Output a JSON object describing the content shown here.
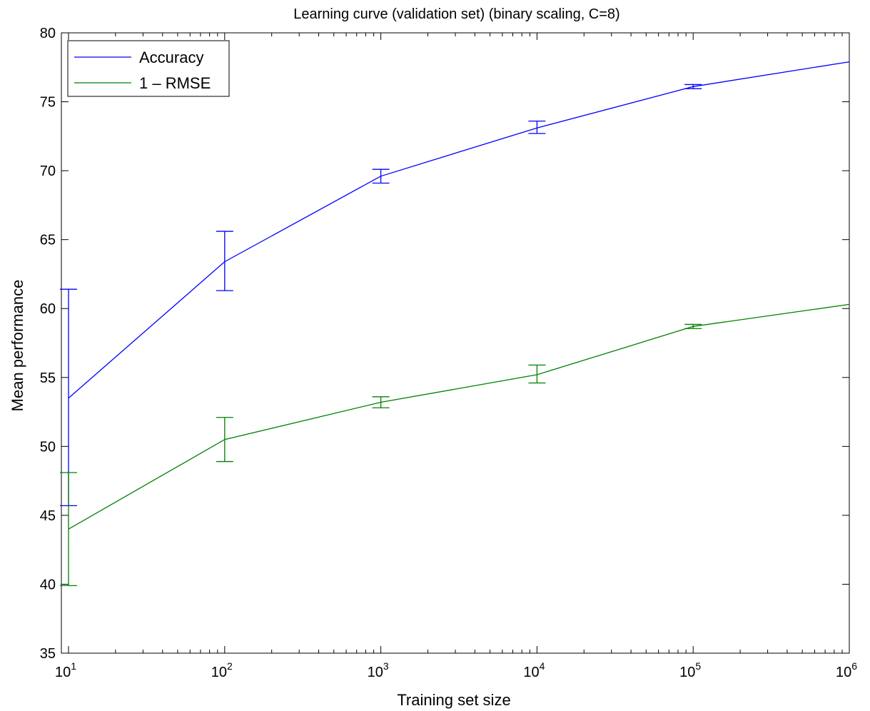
{
  "chart_data": {
    "type": "line",
    "title": "Learning curve (validation set) (binary scaling, C=8)",
    "xlabel": "Training set size",
    "ylabel": "Mean performance",
    "xscale": "log",
    "xlim": [
      9,
      1000000
    ],
    "ylim": [
      35,
      80
    ],
    "x_ticks": [
      {
        "value": 10,
        "base": "10",
        "exp": "1"
      },
      {
        "value": 100,
        "base": "10",
        "exp": "2"
      },
      {
        "value": 1000,
        "base": "10",
        "exp": "3"
      },
      {
        "value": 10000,
        "base": "10",
        "exp": "4"
      },
      {
        "value": 100000,
        "base": "10",
        "exp": "5"
      },
      {
        "value": 1000000,
        "base": "10",
        "exp": "6"
      }
    ],
    "y_ticks": [
      35,
      40,
      45,
      50,
      55,
      60,
      65,
      70,
      75,
      80
    ],
    "grid": false,
    "legend_position": "top-left",
    "series": [
      {
        "name": "Accuracy",
        "color": "#0000ff",
        "x": [
          10,
          100,
          1000,
          10000,
          100000,
          1000000
        ],
        "y": [
          53.5,
          63.4,
          69.6,
          73.1,
          76.1,
          77.9
        ],
        "err_low": [
          45.7,
          61.3,
          69.1,
          72.7,
          75.95,
          null
        ],
        "err_high": [
          61.4,
          65.6,
          70.1,
          73.6,
          76.25,
          null
        ]
      },
      {
        "name": "1 – RMSE",
        "color": "#008000",
        "x": [
          10,
          100,
          1000,
          10000,
          100000,
          1000000
        ],
        "y": [
          44.0,
          50.5,
          53.2,
          55.2,
          58.7,
          60.3
        ],
        "err_low": [
          39.9,
          48.9,
          52.8,
          54.6,
          58.55,
          null
        ],
        "err_high": [
          48.1,
          52.1,
          53.6,
          55.9,
          58.85,
          null
        ]
      }
    ]
  }
}
